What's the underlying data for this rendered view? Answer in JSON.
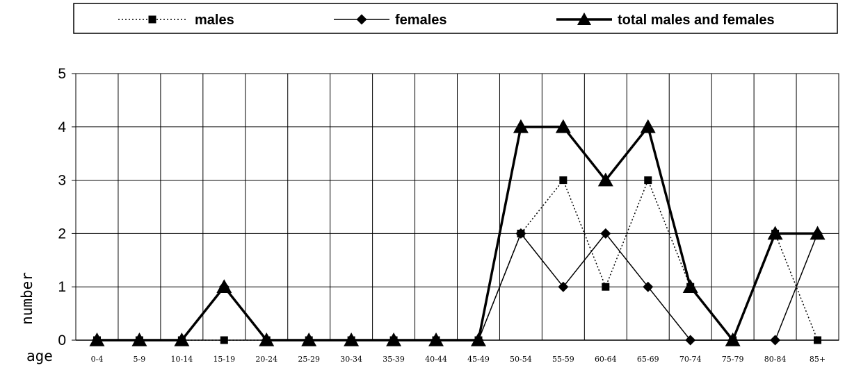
{
  "chart_data": {
    "type": "line",
    "title": "",
    "xlabel": "age",
    "ylabel": "number",
    "ylim": [
      0,
      5
    ],
    "yticks": [
      0,
      1,
      2,
      3,
      4,
      5
    ],
    "grid": true,
    "legend_position": "top",
    "categories": [
      "0-4",
      "5-9",
      "10-14",
      "15-19",
      "20-24",
      "25-29",
      "30-34",
      "35-39",
      "40-44",
      "45-49",
      "50-54",
      "55-59",
      "60-64",
      "65-69",
      "70-74",
      "75-79",
      "80-84",
      "85+"
    ],
    "series": [
      {
        "name": "males",
        "marker": "square",
        "line": "dotted",
        "color": "#000000",
        "values": [
          0,
          0,
          0,
          0,
          0,
          0,
          0,
          0,
          0,
          0,
          2,
          3,
          1,
          3,
          1,
          0,
          2,
          0
        ]
      },
      {
        "name": "females",
        "marker": "diamond",
        "line": "solid-thin",
        "color": "#000000",
        "values": [
          0,
          0,
          0,
          1,
          0,
          0,
          0,
          0,
          0,
          0,
          2,
          1,
          2,
          1,
          0,
          0,
          0,
          2
        ]
      },
      {
        "name": "total males and females",
        "marker": "triangle",
        "line": "solid-thick",
        "color": "#000000",
        "values": [
          0,
          0,
          0,
          1,
          0,
          0,
          0,
          0,
          0,
          0,
          4,
          4,
          3,
          4,
          1,
          0,
          2,
          2
        ]
      }
    ]
  }
}
